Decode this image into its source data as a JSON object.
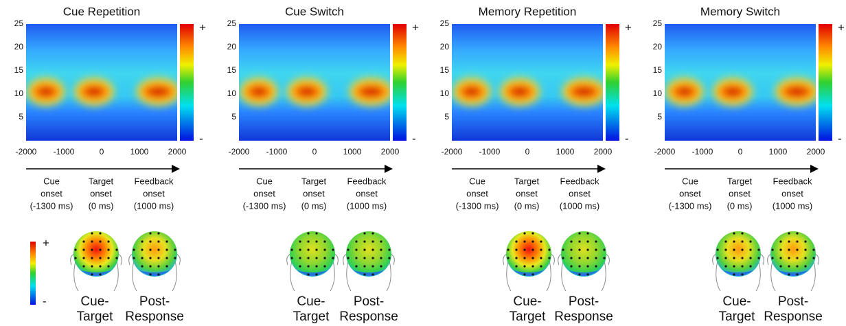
{
  "chart_data": [
    {
      "type": "heatmap",
      "title": "Cue Repetition",
      "xlim": [
        -2000,
        2000
      ],
      "xticks": [
        -2000,
        -1000,
        0,
        1000,
        2000
      ],
      "ylim": [
        0,
        25
      ],
      "yticks": [
        5,
        10,
        15,
        20,
        25
      ],
      "colorbar_labels": [
        "+",
        "-"
      ]
    },
    {
      "type": "heatmap",
      "title": "Cue Switch",
      "xlim": [
        -2000,
        2000
      ],
      "xticks": [
        -2000,
        -1000,
        0,
        1000,
        2000
      ],
      "ylim": [
        0,
        25
      ],
      "yticks": [
        5,
        10,
        15,
        20,
        25
      ],
      "colorbar_labels": [
        "+",
        "-"
      ]
    },
    {
      "type": "heatmap",
      "title": "Memory Repetition",
      "xlim": [
        -2000,
        2000
      ],
      "xticks": [
        -2000,
        -1000,
        0,
        1000,
        2000
      ],
      "ylim": [
        0,
        25
      ],
      "yticks": [
        5,
        10,
        15,
        20,
        25
      ],
      "colorbar_labels": [
        "+",
        "-"
      ]
    },
    {
      "type": "heatmap",
      "title": "Memory Switch",
      "xlim": [
        -2000,
        2000
      ],
      "xticks": [
        -2000,
        -1000,
        0,
        1000,
        2000
      ],
      "ylim": [
        0,
        25
      ],
      "yticks": [
        5,
        10,
        15,
        20,
        25
      ],
      "colorbar_labels": [
        "+",
        "-"
      ]
    }
  ],
  "events": [
    [
      "Cue",
      "onset",
      "(-1300 ms)"
    ],
    [
      "Target",
      "onset",
      "(0 ms)"
    ],
    [
      "Feedback",
      "onset",
      "(1000 ms)"
    ]
  ],
  "topomaps": {
    "colorbar_labels": [
      "+",
      "-"
    ],
    "labels": [
      [
        "Cue-",
        "Target"
      ],
      [
        "Post-",
        "Response"
      ]
    ]
  }
}
